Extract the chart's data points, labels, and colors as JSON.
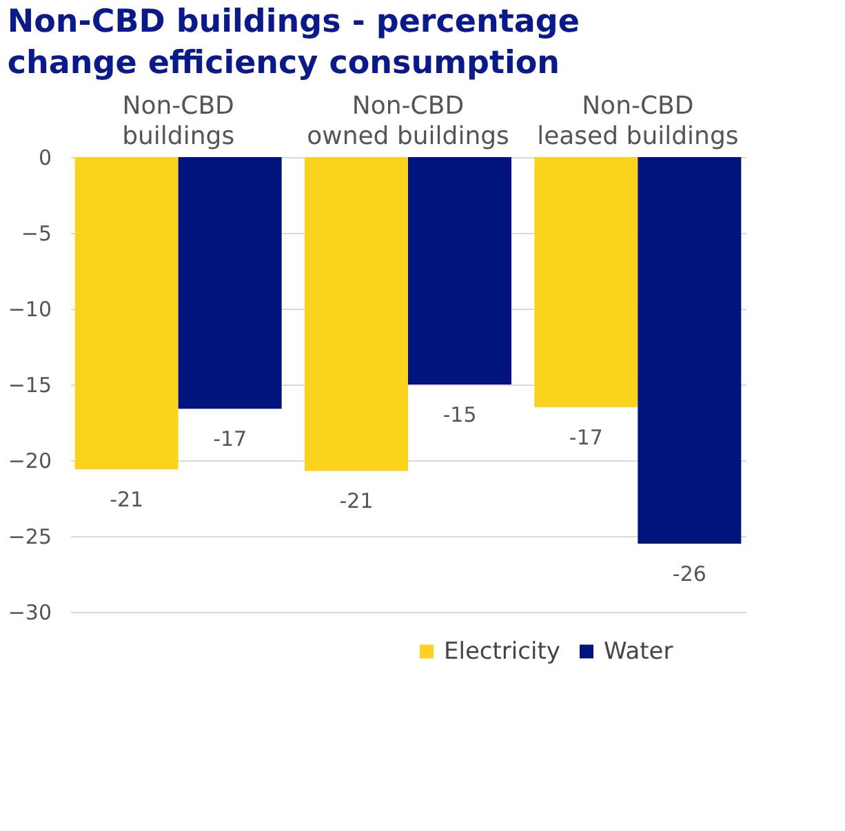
{
  "chart_data": {
    "type": "bar",
    "title": "Non-CBD buildings - percentage change efficiency consumption",
    "categories": [
      "Non-CBD buildings",
      "Non-CBD owned buildings",
      "Non-CBD leased buildings"
    ],
    "series": [
      {
        "name": "Electricity",
        "color": "#fcd31c",
        "values": [
          -20.6,
          -20.7,
          -16.5
        ],
        "value_labels": [
          "-21",
          "-21",
          "-17"
        ]
      },
      {
        "name": "Water",
        "color": "#00137f",
        "values": [
          -16.6,
          -15.0,
          -25.5
        ],
        "value_labels": [
          "-17",
          "-15",
          "-26"
        ]
      }
    ],
    "ylim": [
      -30,
      0
    ],
    "yticks": [
      0,
      -5,
      -10,
      -15,
      -20,
      -25,
      -30
    ],
    "grid": "y",
    "legend": "bottom right"
  }
}
